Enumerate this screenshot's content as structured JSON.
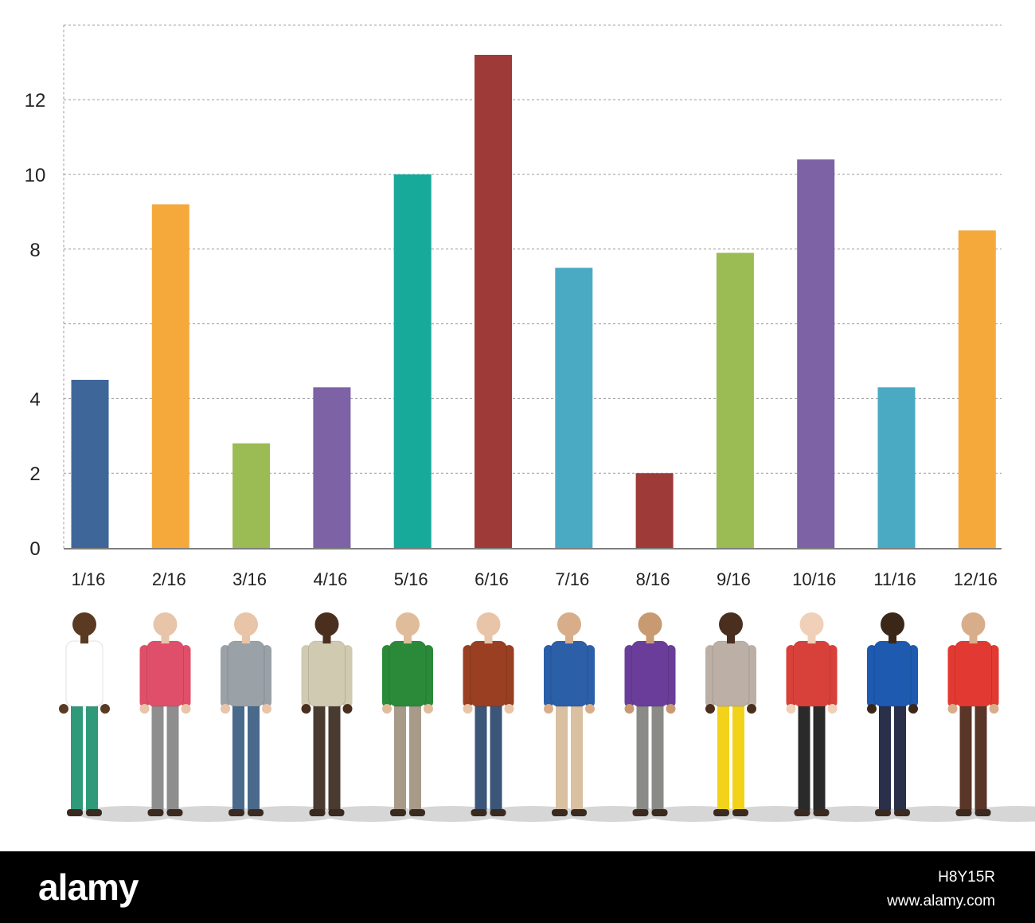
{
  "chart_data": {
    "type": "bar",
    "categories": [
      "1/16",
      "2/16",
      "3/16",
      "4/16",
      "5/16",
      "6/16",
      "7/16",
      "8/16",
      "9/16",
      "10/16",
      "11/16",
      "12/16"
    ],
    "values": [
      4.5,
      9.2,
      2.8,
      4.3,
      10.0,
      13.2,
      7.5,
      2.0,
      7.9,
      10.4,
      4.3,
      8.5
    ],
    "colors": [
      "#3e6699",
      "#f6a93b",
      "#9bbb55",
      "#7d62a5",
      "#17a999",
      "#9e3a38",
      "#4aaac4",
      "#9e3a38",
      "#9bbb55",
      "#7d62a5",
      "#4aaac4",
      "#f6a93b"
    ],
    "yticks": [
      0,
      2,
      4,
      8,
      10,
      12
    ],
    "ylim": [
      0,
      14
    ],
    "grid": true,
    "title": "",
    "xlabel": "",
    "ylabel": ""
  },
  "people": [
    {
      "shirt": "#ffffff",
      "pants": "#2e9a7a",
      "skin": "#5a3a22"
    },
    {
      "shirt": "#e04f6a",
      "pants": "#8e8e8e",
      "skin": "#e8c4a8"
    },
    {
      "shirt": "#9aa2a8",
      "pants": "#4a6a8c",
      "skin": "#e8c4a8"
    },
    {
      "shirt": "#cfcab0",
      "pants": "#4a3b30",
      "skin": "#4a2f1e"
    },
    {
      "shirt": "#2a8a3a",
      "pants": "#a79a88",
      "skin": "#e0bd9a"
    },
    {
      "shirt": "#9a3f22",
      "pants": "#3b5678",
      "skin": "#e8c4a8"
    },
    {
      "shirt": "#2b5fa8",
      "pants": "#d8c0a0",
      "skin": "#d8ae8a"
    },
    {
      "shirt": "#6a3d9a",
      "pants": "#8a8a86",
      "skin": "#c89a72"
    },
    {
      "shirt": "#bcb0a6",
      "pants": "#f2d31a",
      "skin": "#4a2f1e"
    },
    {
      "shirt": "#d8413a",
      "pants": "#2a2a2a",
      "skin": "#f0d0b8"
    },
    {
      "shirt": "#1d5ab0",
      "pants": "#2a2f4a",
      "skin": "#3a2718"
    },
    {
      "shirt": "#e23a32",
      "pants": "#5a3628",
      "skin": "#d8ae8a"
    }
  ],
  "footer": {
    "logo": "alamy",
    "image_id": "H8Y15R",
    "site": "www.alamy.com"
  }
}
